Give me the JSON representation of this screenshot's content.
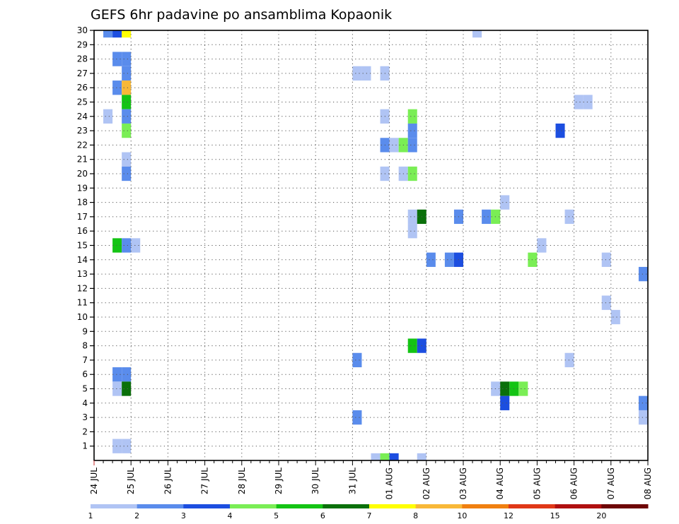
{
  "chart_data": {
    "type": "heatmap",
    "title": "GEFS 6hr padavine po ansamblima Kopaonik",
    "xlabel": "",
    "ylabel": "",
    "x_unit": "6-hour step",
    "x_ticks": [
      "24 JUL",
      "25 JUL",
      "26 JUL",
      "27 JUL",
      "28 JUL",
      "29 JUL",
      "30 JUL",
      "31 JUL",
      "01 AUG",
      "02 AUG",
      "03 AUG",
      "04 AUG",
      "05 AUG",
      "06 AUG",
      "07 AUG",
      "08 AUG"
    ],
    "y_ticks": [
      1,
      2,
      3,
      4,
      5,
      6,
      7,
      8,
      9,
      10,
      11,
      12,
      13,
      14,
      15,
      16,
      17,
      18,
      19,
      20,
      21,
      22,
      23,
      24,
      25,
      26,
      27,
      28,
      29,
      30
    ],
    "xlim": [
      0,
      60
    ],
    "ylim": [
      0,
      30
    ],
    "grid": true,
    "legend": {
      "position": "bottom",
      "labels": [
        "1",
        "2",
        "3",
        "4",
        "5",
        "6",
        "7",
        "8",
        "10",
        "12",
        "15",
        "20"
      ],
      "colors": [
        "#b0c4f4",
        "#5a8cec",
        "#1c4ee0",
        "#7aee55",
        "#14c414",
        "#0a700a",
        "#ffff00",
        "#f8b838",
        "#f08010",
        "#e03818",
        "#b01010",
        "#6e0606"
      ]
    },
    "cells": [
      {
        "x": 1.5,
        "y": 30,
        "v": 2
      },
      {
        "x": 2.5,
        "y": 30,
        "v": 3
      },
      {
        "x": 3.5,
        "y": 30,
        "v": 7
      },
      {
        "x": 41.5,
        "y": 30,
        "v": 1
      },
      {
        "x": 2.5,
        "y": 28,
        "v": 2
      },
      {
        "x": 3.5,
        "y": 28,
        "v": 2
      },
      {
        "x": 3.5,
        "y": 27,
        "v": 2
      },
      {
        "x": 28.5,
        "y": 27,
        "v": 1
      },
      {
        "x": 29.5,
        "y": 27,
        "v": 1
      },
      {
        "x": 31.5,
        "y": 27,
        "v": 1
      },
      {
        "x": 2.5,
        "y": 26,
        "v": 2
      },
      {
        "x": 3.5,
        "y": 26,
        "v": 8
      },
      {
        "x": 3.5,
        "y": 25,
        "v": 5
      },
      {
        "x": 52.5,
        "y": 25,
        "v": 1
      },
      {
        "x": 53.5,
        "y": 25,
        "v": 1
      },
      {
        "x": 1.5,
        "y": 24,
        "v": 1
      },
      {
        "x": 3.5,
        "y": 24,
        "v": 2
      },
      {
        "x": 31.5,
        "y": 24,
        "v": 1
      },
      {
        "x": 34.5,
        "y": 24,
        "v": 4
      },
      {
        "x": 3.5,
        "y": 23,
        "v": 4
      },
      {
        "x": 34.5,
        "y": 23,
        "v": 2
      },
      {
        "x": 50.5,
        "y": 23,
        "v": 3
      },
      {
        "x": 31.5,
        "y": 22,
        "v": 2
      },
      {
        "x": 32.5,
        "y": 22,
        "v": 1
      },
      {
        "x": 33.5,
        "y": 22,
        "v": 4
      },
      {
        "x": 34.5,
        "y": 22,
        "v": 2
      },
      {
        "x": 3.5,
        "y": 21,
        "v": 1
      },
      {
        "x": 3.5,
        "y": 20,
        "v": 2
      },
      {
        "x": 31.5,
        "y": 20,
        "v": 1
      },
      {
        "x": 33.5,
        "y": 20,
        "v": 1
      },
      {
        "x": 34.5,
        "y": 20,
        "v": 4
      },
      {
        "x": 44.5,
        "y": 18,
        "v": 1
      },
      {
        "x": 34.5,
        "y": 17,
        "v": 1
      },
      {
        "x": 35.5,
        "y": 17,
        "v": 6
      },
      {
        "x": 39.5,
        "y": 17,
        "v": 2
      },
      {
        "x": 42.5,
        "y": 17,
        "v": 2
      },
      {
        "x": 43.5,
        "y": 17,
        "v": 4
      },
      {
        "x": 51.5,
        "y": 17,
        "v": 1
      },
      {
        "x": 34.5,
        "y": 16,
        "v": 1
      },
      {
        "x": 2.5,
        "y": 15,
        "v": 5
      },
      {
        "x": 3.5,
        "y": 15,
        "v": 2
      },
      {
        "x": 4.5,
        "y": 15,
        "v": 1
      },
      {
        "x": 48.5,
        "y": 15,
        "v": 1
      },
      {
        "x": 36.5,
        "y": 14,
        "v": 2
      },
      {
        "x": 38.5,
        "y": 14,
        "v": 2
      },
      {
        "x": 39.5,
        "y": 14,
        "v": 3
      },
      {
        "x": 47.5,
        "y": 14,
        "v": 4
      },
      {
        "x": 55.5,
        "y": 14,
        "v": 1
      },
      {
        "x": 59.5,
        "y": 13,
        "v": 2
      },
      {
        "x": 55.5,
        "y": 11,
        "v": 1
      },
      {
        "x": 56.5,
        "y": 10,
        "v": 1
      },
      {
        "x": 34.5,
        "y": 8,
        "v": 5
      },
      {
        "x": 35.5,
        "y": 8,
        "v": 3
      },
      {
        "x": 28.5,
        "y": 7,
        "v": 2
      },
      {
        "x": 51.5,
        "y": 7,
        "v": 1
      },
      {
        "x": 2.5,
        "y": 6,
        "v": 2
      },
      {
        "x": 3.5,
        "y": 6,
        "v": 2
      },
      {
        "x": 2.5,
        "y": 5,
        "v": 1
      },
      {
        "x": 3.5,
        "y": 5,
        "v": 6
      },
      {
        "x": 43.5,
        "y": 5,
        "v": 1
      },
      {
        "x": 44.5,
        "y": 5,
        "v": 6
      },
      {
        "x": 45.5,
        "y": 5,
        "v": 5
      },
      {
        "x": 46.5,
        "y": 5,
        "v": 4
      },
      {
        "x": 44.5,
        "y": 4,
        "v": 3
      },
      {
        "x": 59.5,
        "y": 4,
        "v": 2
      },
      {
        "x": 28.5,
        "y": 3,
        "v": 2
      },
      {
        "x": 59.5,
        "y": 3,
        "v": 1
      },
      {
        "x": 2.5,
        "y": 1,
        "v": 1
      },
      {
        "x": 3.5,
        "y": 1,
        "v": 1
      },
      {
        "x": 30.5,
        "y": 0,
        "v": 1
      },
      {
        "x": 31.5,
        "y": 0,
        "v": 4
      },
      {
        "x": 32.5,
        "y": 0,
        "v": 3
      },
      {
        "x": 35.5,
        "y": 0,
        "v": 1
      }
    ]
  }
}
